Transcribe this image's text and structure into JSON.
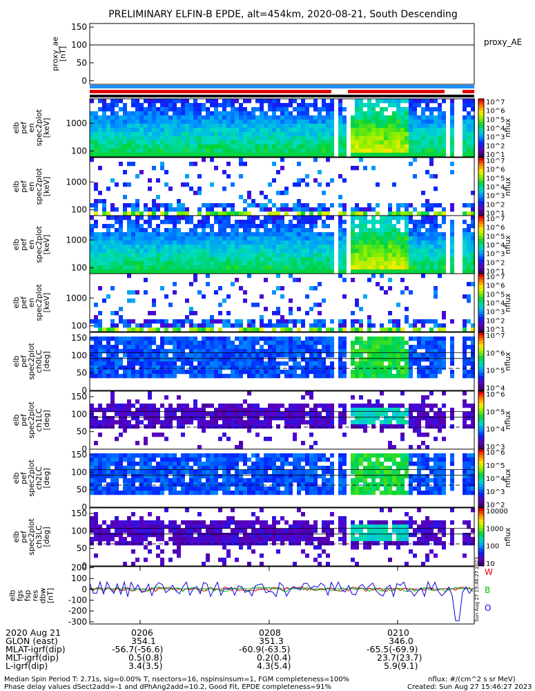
{
  "title": "PRELIMINARY ELFIN-B EPDE, alt=454km, 2020-08-21, South Descending",
  "proxy_ae": {
    "ylabel_lines": [
      "proxy_ae",
      "[nT]"
    ],
    "yticks": [
      "150",
      "100",
      "50",
      "0"
    ],
    "ylim": [
      -10,
      160
    ],
    "legend": "proxy_AE",
    "value": 100
  },
  "panels": [
    {
      "ylabel_lines": [
        "elb",
        "pef",
        "en",
        "spec2plot",
        "[keV]"
      ],
      "yticks": [
        "1000",
        "100"
      ],
      "cbar_ticks": [
        "10^7",
        "10^6",
        "10^5",
        "10^4",
        "10^3",
        "10^2",
        "10^1"
      ],
      "cbar_label": "nflux"
    },
    {
      "ylabel_lines": [
        "elb",
        "pef",
        "en",
        "spec2plot",
        "[keV]"
      ],
      "yticks": [
        "1000",
        "100"
      ],
      "cbar_ticks": [
        "10^7",
        "10^6",
        "10^5",
        "10^4",
        "10^3",
        "10^2",
        "10^1"
      ],
      "cbar_label": "nflux"
    },
    {
      "ylabel_lines": [
        "elb",
        "pef",
        "en",
        "spec2plot",
        "[keV]"
      ],
      "yticks": [
        "1000",
        "100"
      ],
      "cbar_ticks": [
        "10^7",
        "10^6",
        "10^5",
        "10^4",
        "10^3",
        "10^2",
        "10^1"
      ],
      "cbar_label": "nflux"
    },
    {
      "ylabel_lines": [
        "elb",
        "pef",
        "en",
        "spec2plot",
        "[keV]"
      ],
      "yticks": [
        "1000",
        "100"
      ],
      "cbar_ticks": [
        "10^7",
        "10^6",
        "10^5",
        "10^4",
        "10^3",
        "10^2",
        "10^1"
      ],
      "cbar_label": "nflux"
    },
    {
      "ylabel_lines": [
        "elb",
        "pef",
        "spec2plot",
        "ch0LC",
        "[deg]"
      ],
      "yticks": [
        "150",
        "100",
        "50",
        "0"
      ],
      "cbar_ticks": [
        "10^7",
        "10^6",
        "10^5",
        "10^4"
      ],
      "cbar_label": "nflux"
    },
    {
      "ylabel_lines": [
        "elb",
        "pef",
        "spec2plot",
        "ch1LC",
        "[deg]"
      ],
      "yticks": [
        "150",
        "100",
        "50",
        "0"
      ],
      "cbar_ticks": [
        "10^6",
        "10^5",
        "10^4",
        "10^3"
      ],
      "cbar_label": "nflux"
    },
    {
      "ylabel_lines": [
        "elb",
        "pef",
        "spec2plot",
        "ch2LC",
        "[deg]"
      ],
      "yticks": [
        "150",
        "100",
        "50",
        "0"
      ],
      "cbar_ticks": [
        "10^6",
        "10^5",
        "10^4",
        "10^3",
        "10^2"
      ],
      "cbar_label": "nflux"
    },
    {
      "ylabel_lines": [
        "elb",
        "pef",
        "spec2plot",
        "ch3LC",
        "[deg]"
      ],
      "yticks": [
        "150",
        "100",
        "50",
        "0"
      ],
      "cbar_ticks": [
        "10000",
        "1000",
        "100",
        "10"
      ],
      "cbar_label": "nflux"
    }
  ],
  "bfield": {
    "ylabel_lines": [
      "elb",
      "fgs",
      "fsp",
      "res",
      "dbw",
      "[nT]"
    ],
    "yticks": [
      "200",
      "100",
      "0",
      "-100",
      "-200",
      "-300"
    ],
    "ylim": [
      -320,
      210
    ],
    "legend": [
      {
        "label": "W",
        "color": "#e00000"
      },
      {
        "label": "B",
        "color": "#00c000"
      },
      {
        "label": "O",
        "color": "#0000e0"
      }
    ],
    "side_note": "Sun Aug 27 15:46:27 2023"
  },
  "xaxis": {
    "ticks": [
      "0206",
      "0208",
      "0210"
    ],
    "row_labels": [
      "2020 Aug 21",
      "GLON (east)",
      "MLAT-igrf(dip)",
      "MLT-igrf(dip)",
      "L-igrf(dip)"
    ],
    "columns": [
      [
        "354.1",
        "-56.7(-56.6)",
        "0.5(0.8)",
        "3.4(3.5)"
      ],
      [
        "351.3",
        "-60.9(-63.5)",
        "0.2(0.4)",
        "4.3(5.4)"
      ],
      [
        "346.0",
        "-65.5(-69.9)",
        "23.7(23.7)",
        "5.9(9.1)"
      ]
    ]
  },
  "footer": {
    "line1_left": "Median Spin Period T: 2.71s, sig=0.00% T, nsectors=16, nspinsinsum=1, FGM completeness=100%",
    "line1_right": "nflux: #/(cm^2 s sr MeV)",
    "line2_left": "Phase delay values dSect2add=-1 and dPhAng2add=10.2, Good Fit, EPDE completeness=91%",
    "line2_right": "Created: Sun Aug 27 15:46:27 2023"
  },
  "colors": {
    "coverage_blue": "#1e90ff",
    "coverage_red": "#e00000",
    "coverage_black": "#000000"
  }
}
